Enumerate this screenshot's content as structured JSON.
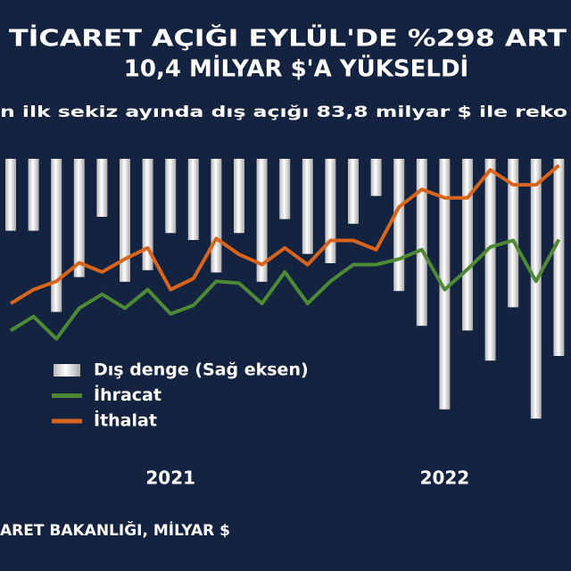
{
  "chart_data": {
    "type": "combo",
    "title": [
      "TİCARET AÇIĞI EYLÜL'DE %298 ART",
      "10,4 MİLYAR $'A YÜKSELDİ"
    ],
    "subtitle": "n ilk sekiz ayında dış açığı 83,8 milyar $ ile reko",
    "source": "ARET BAKANLIĞI, MİLYAR $",
    "categories": [
      null,
      null,
      null,
      null,
      null,
      null,
      null,
      "2021",
      null,
      null,
      null,
      null,
      null,
      null,
      null,
      null,
      null,
      null,
      null,
      "2022",
      null,
      null,
      null,
      null,
      null
    ],
    "ylim": [
      5,
      35
    ],
    "y2lim": [
      0,
      -12
    ],
    "series": [
      {
        "name": "Dış denge (Sağ eksen)",
        "type": "bar",
        "axis": "y2",
        "color": "#f2f2f2",
        "values": [
          -3.1,
          -3.1,
          -6.6,
          -5.1,
          -2.5,
          -5.3,
          -4.8,
          -3.2,
          -3.5,
          -4.9,
          -3.2,
          -5.3,
          -2.6,
          -4.1,
          -4.5,
          -2.8,
          -1.6,
          -5.7,
          -7.2,
          -10.8,
          -7.4,
          -8.7,
          -6.4,
          -11.2,
          -8.5
        ]
      },
      {
        "name": "İhracat",
        "type": "line",
        "color": "#4e8a35",
        "values": [
          16.5,
          18.0,
          15.6,
          18.9,
          20.4,
          18.9,
          20.9,
          18.3,
          19.2,
          21.8,
          21.6,
          19.4,
          22.8,
          19.4,
          21.8,
          23.6,
          23.6,
          24.2,
          25.2,
          20.9,
          23.1,
          25.5,
          26.2,
          21.8,
          26.3
        ]
      },
      {
        "name": "İthalat",
        "type": "line",
        "color": "#d9651c",
        "values": [
          19.4,
          20.9,
          21.8,
          23.8,
          22.8,
          24.2,
          25.4,
          20.9,
          22.1,
          26.4,
          24.7,
          23.6,
          25.4,
          23.6,
          26.2,
          26.2,
          25.2,
          29.8,
          31.7,
          30.8,
          30.8,
          33.8,
          32.2,
          32.2,
          34.3
        ]
      }
    ]
  }
}
